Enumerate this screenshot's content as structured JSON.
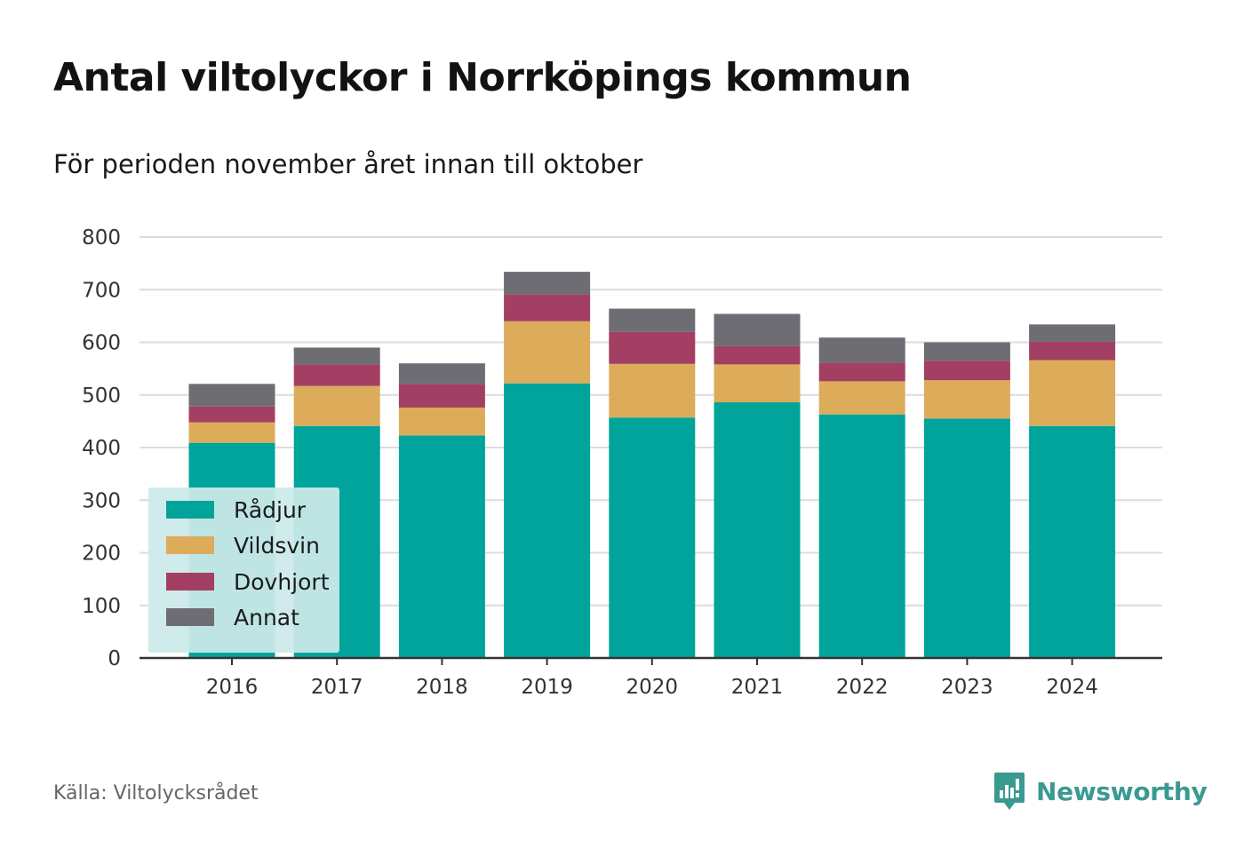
{
  "title": "Antal viltolyckor i Norrköpings kommun",
  "subtitle": "För perioden november året innan till oktober",
  "source": "Källa: Viltolycksrådet",
  "brand": {
    "name": "Newsworthy",
    "icon": "newsworthy-logo-icon",
    "color": "#3a9a90"
  },
  "chart_data": {
    "type": "bar",
    "stacked": true,
    "categories": [
      "2016",
      "2017",
      "2018",
      "2019",
      "2020",
      "2021",
      "2022",
      "2023",
      "2024"
    ],
    "series": [
      {
        "name": "Rådjur",
        "color": "#00a49a",
        "values": [
          409,
          441,
          423,
          522,
          457,
          486,
          463,
          455,
          441
        ]
      },
      {
        "name": "Vildsvin",
        "color": "#dcac5a",
        "values": [
          39,
          76,
          53,
          118,
          102,
          72,
          63,
          73,
          125
        ]
      },
      {
        "name": "Dovhjort",
        "color": "#a33f63",
        "values": [
          30,
          41,
          45,
          51,
          61,
          35,
          35,
          37,
          35
        ]
      },
      {
        "name": "Annat",
        "color": "#6e6d73",
        "values": [
          43,
          32,
          39,
          43,
          44,
          61,
          48,
          35,
          33
        ]
      }
    ],
    "y_ticks": [
      "0",
      "100",
      "200",
      "300",
      "400",
      "500",
      "600",
      "700",
      "800"
    ],
    "ylim": [
      0,
      800
    ],
    "grid": true,
    "legend_position": "bottom-left"
  }
}
